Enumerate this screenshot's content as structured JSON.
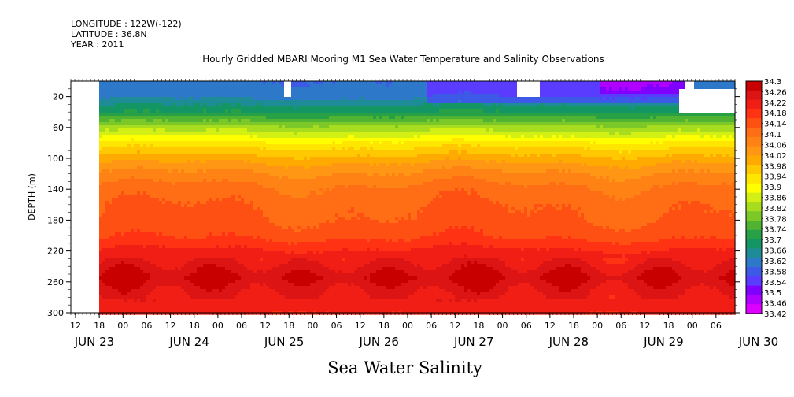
{
  "header": {
    "longitude": "LONGITUDE : 122W(-122)",
    "latitude": "LATITUDE : 36.8N",
    "year": "YEAR : 2011"
  },
  "chart_title": "Hourly Gridded MBARI Mooring M1 Sea Water Temperature and Salinity Observations",
  "variable_title": "Sea Water Salinity",
  "colors": {
    "palette": [
      "#dd00ff",
      "#b000ff",
      "#8000ff",
      "#5a3cff",
      "#3c5ae6",
      "#2d78c8",
      "#1e8c96",
      "#149664",
      "#28a046",
      "#50b432",
      "#7cc828",
      "#a8dc1e",
      "#d2f014",
      "#ffff00",
      "#ffe600",
      "#ffc800",
      "#ffaa00",
      "#ff9614",
      "#ff8214",
      "#ff6e14",
      "#ff5014",
      "#ff3214",
      "#f01e14",
      "#dc1414",
      "#c80000"
    ]
  },
  "chart_data": {
    "type": "heatmap",
    "xlabel": "",
    "ylabel": "DEPTH (m)",
    "ylim": [
      300,
      0
    ],
    "y_ticks": [
      20,
      60,
      100,
      140,
      180,
      220,
      260,
      300
    ],
    "x_hour_labels": [
      "12",
      "18",
      "00",
      "06",
      "12",
      "18",
      "00",
      "06",
      "12",
      "18",
      "00",
      "06",
      "12",
      "18",
      "00",
      "06",
      "12",
      "18",
      "00",
      "06",
      "12",
      "18",
      "00",
      "06",
      "12",
      "18",
      "00",
      "06"
    ],
    "x_day_labels": [
      "JUN 23",
      "JUN 24",
      "JUN 25",
      "JUN 26",
      "JUN 27",
      "JUN 28",
      "JUN 29",
      "JUN 30"
    ],
    "x_range": [
      "2011-06-23 12:00",
      "2011-06-30 12:00"
    ],
    "data_start": "2011-06-23 18:00",
    "colorbar_levels": [
      "34.3",
      "34.26",
      "34.22",
      "34.18",
      "34.14",
      "34.1",
      "34.06",
      "34.02",
      "33.98",
      "33.94",
      "33.9",
      "33.86",
      "33.82",
      "33.78",
      "33.74",
      "33.7",
      "33.66",
      "33.62",
      "33.58",
      "33.54",
      "33.5",
      "33.46",
      "33.42"
    ],
    "colorbar_range": [
      33.42,
      34.3
    ],
    "depth_profile": [
      {
        "depth": 5,
        "salinity": 33.6
      },
      {
        "depth": 20,
        "salinity": 33.62
      },
      {
        "depth": 40,
        "salinity": 33.7
      },
      {
        "depth": 60,
        "salinity": 33.82
      },
      {
        "depth": 80,
        "salinity": 33.92
      },
      {
        "depth": 100,
        "salinity": 34.0
      },
      {
        "depth": 120,
        "salinity": 34.06
      },
      {
        "depth": 140,
        "salinity": 34.1
      },
      {
        "depth": 160,
        "salinity": 34.12
      },
      {
        "depth": 180,
        "salinity": 34.13
      },
      {
        "depth": 200,
        "salinity": 34.15
      },
      {
        "depth": 220,
        "salinity": 34.2
      },
      {
        "depth": 240,
        "salinity": 34.24
      },
      {
        "depth": 255,
        "salinity": 34.27
      },
      {
        "depth": 270,
        "salinity": 34.24
      },
      {
        "depth": 300,
        "salinity": 34.2
      }
    ]
  }
}
